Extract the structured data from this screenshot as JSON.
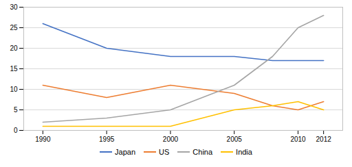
{
  "chart_data": {
    "type": "line",
    "x": [
      1990,
      1995,
      2000,
      2005,
      2008,
      2010,
      2012
    ],
    "series": [
      {
        "name": "Japan",
        "color": "#4472C4",
        "values": [
          26,
          20,
          18,
          18,
          17,
          17,
          17
        ]
      },
      {
        "name": "US",
        "color": "#ED7D31",
        "values": [
          11,
          8,
          11,
          9,
          6,
          5,
          7
        ]
      },
      {
        "name": "China",
        "color": "#A5A5A5",
        "values": [
          2,
          3,
          5,
          11,
          18,
          25,
          28
        ]
      },
      {
        "name": "India",
        "color": "#FFC000",
        "values": [
          1,
          1,
          1,
          5,
          6,
          7,
          5
        ]
      }
    ],
    "xlim": [
      1988.5,
      2013.5
    ],
    "xticks": [
      1990,
      1995,
      2000,
      2005,
      2010,
      2012
    ],
    "ylim": [
      0,
      30
    ],
    "yticks": [
      0,
      5,
      10,
      15,
      20,
      25,
      30
    ],
    "grid": true,
    "legend": "bottom"
  }
}
